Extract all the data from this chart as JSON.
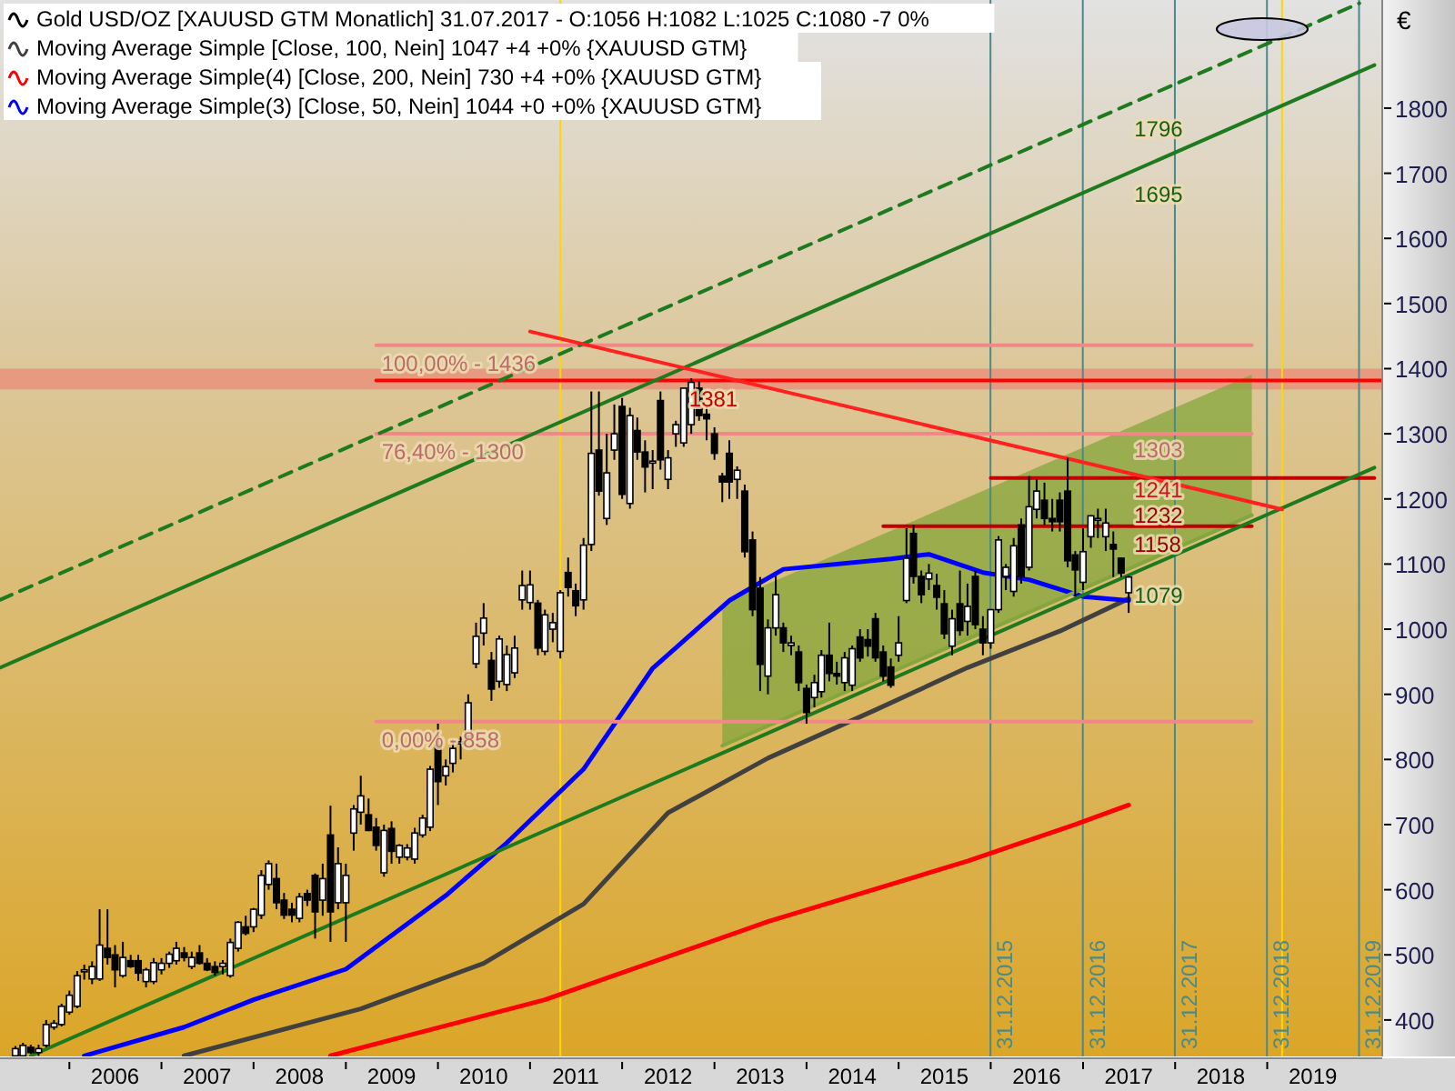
{
  "chart_data": {
    "type": "candlestick",
    "ylabel": "€",
    "legend": "top left",
    "xlim": [
      "2005-04",
      "2020-04"
    ],
    "xticks": [
      {
        "value": "2006-01",
        "label": null
      },
      {
        "value": "2006-07",
        "label": "2006"
      },
      {
        "value": "2007-01",
        "label": null
      },
      {
        "value": "2007-07",
        "label": "2007"
      },
      {
        "value": "2008-01",
        "label": null
      },
      {
        "value": "2008-07",
        "label": "2008"
      },
      {
        "value": "2009-01",
        "label": null
      },
      {
        "value": "2009-07",
        "label": "2009"
      },
      {
        "value": "2010-01",
        "label": null
      },
      {
        "value": "2010-07",
        "label": "2010"
      },
      {
        "value": "2011-01",
        "label": null
      },
      {
        "value": "2011-07",
        "label": "2011"
      },
      {
        "value": "2012-01",
        "label": null
      },
      {
        "value": "2012-07",
        "label": "2012"
      },
      {
        "value": "2013-01",
        "label": null
      },
      {
        "value": "2013-07",
        "label": "2013"
      },
      {
        "value": "2014-01",
        "label": null
      },
      {
        "value": "2014-07",
        "label": "2014"
      },
      {
        "value": "2015-01",
        "label": null
      },
      {
        "value": "2015-07",
        "label": "2015"
      },
      {
        "value": "2016-01",
        "label": null
      },
      {
        "value": "2016-07",
        "label": "2016"
      },
      {
        "value": "2017-01",
        "label": null
      },
      {
        "value": "2017-07",
        "label": "2017"
      },
      {
        "value": "2018-01",
        "label": null
      },
      {
        "value": "2018-07",
        "label": "2018"
      },
      {
        "value": "2019-01",
        "label": null
      },
      {
        "value": "2019-07",
        "label": "2019"
      }
    ],
    "ylim": [
      344,
      1966
    ],
    "yticks": [
      400,
      500,
      600,
      700,
      800,
      900,
      1000,
      1100,
      1200,
      1300,
      1400,
      1500,
      1600,
      1700,
      1800
    ],
    "series": [
      {
        "name": "Gold USD/OZ [XAUUSD GTM  Monatlich] 31.07.2017 - O:1056 H:1082 L:1025 C:1080 -7 0%",
        "color": "#000000",
        "x": [
          "2005-06",
          "2005-07",
          "2005-08",
          "2005-09",
          "2005-10",
          "2005-11",
          "2005-12",
          "2006-01",
          "2006-02",
          "2006-03",
          "2006-04",
          "2006-05",
          "2006-06",
          "2006-07",
          "2006-08",
          "2006-09",
          "2006-10",
          "2006-11",
          "2006-12",
          "2007-01",
          "2007-02",
          "2007-03",
          "2007-04",
          "2007-05",
          "2007-06",
          "2007-07",
          "2007-08",
          "2007-09",
          "2007-10",
          "2007-11",
          "2007-12",
          "2008-01",
          "2008-02",
          "2008-03",
          "2008-04",
          "2008-05",
          "2008-06",
          "2008-07",
          "2008-08",
          "2008-09",
          "2008-10",
          "2008-11",
          "2008-12",
          "2009-01",
          "2009-02",
          "2009-03",
          "2009-04",
          "2009-05",
          "2009-06",
          "2009-07",
          "2009-08",
          "2009-09",
          "2009-10",
          "2009-11",
          "2009-12",
          "2010-01",
          "2010-02",
          "2010-03",
          "2010-04",
          "2010-05",
          "2010-06",
          "2010-07",
          "2010-08",
          "2010-09",
          "2010-10",
          "2010-11",
          "2010-12",
          "2011-01",
          "2011-02",
          "2011-03",
          "2011-04",
          "2011-05",
          "2011-06",
          "2011-07",
          "2011-08",
          "2011-09",
          "2011-10",
          "2011-11",
          "2011-12",
          "2012-01",
          "2012-02",
          "2012-03",
          "2012-04",
          "2012-05",
          "2012-06",
          "2012-07",
          "2012-08",
          "2012-09",
          "2012-10",
          "2012-11",
          "2012-12",
          "2013-01",
          "2013-02",
          "2013-03",
          "2013-04",
          "2013-05",
          "2013-06",
          "2013-07",
          "2013-08",
          "2013-09",
          "2013-10",
          "2013-11",
          "2013-12",
          "2014-01",
          "2014-02",
          "2014-03",
          "2014-04",
          "2014-05",
          "2014-06",
          "2014-07",
          "2014-08",
          "2014-09",
          "2014-10",
          "2014-11",
          "2014-12",
          "2015-01",
          "2015-02",
          "2015-03",
          "2015-04",
          "2015-05",
          "2015-06",
          "2015-07",
          "2015-08",
          "2015-09",
          "2015-10",
          "2015-11",
          "2015-12",
          "2016-01",
          "2016-02",
          "2016-03",
          "2016-04",
          "2016-05",
          "2016-06",
          "2016-07",
          "2016-08",
          "2016-09",
          "2016-10",
          "2016-11",
          "2016-12",
          "2017-01",
          "2017-02",
          "2017-03",
          "2017-04",
          "2017-05",
          "2017-06",
          "2017-07"
        ],
        "ohlc": [
          [
            345,
            360,
            340,
            356
          ],
          [
            345,
            365,
            342,
            361
          ],
          [
            358,
            362,
            348,
            350
          ],
          [
            350,
            362,
            345,
            356
          ],
          [
            361,
            400,
            358,
            393
          ],
          [
            389,
            400,
            385,
            395
          ],
          [
            393,
            425,
            390,
            421
          ],
          [
            412,
            445,
            408,
            438
          ],
          [
            421,
            475,
            418,
            468
          ],
          [
            474,
            485,
            462,
            477
          ],
          [
            463,
            490,
            455,
            482
          ],
          [
            463,
            570,
            460,
            515
          ],
          [
            510,
            570,
            485,
            496
          ],
          [
            500,
            515,
            450,
            477
          ],
          [
            468,
            520,
            465,
            496
          ],
          [
            491,
            500,
            480,
            482
          ],
          [
            491,
            500,
            460,
            472
          ],
          [
            459,
            480,
            450,
            477
          ],
          [
            459,
            495,
            455,
            488
          ],
          [
            477,
            495,
            470,
            487
          ],
          [
            487,
            505,
            480,
            501
          ],
          [
            491,
            520,
            485,
            510
          ],
          [
            503,
            512,
            490,
            496
          ],
          [
            482,
            505,
            478,
            496
          ],
          [
            503,
            515,
            485,
            487
          ],
          [
            487,
            495,
            475,
            477
          ],
          [
            482,
            490,
            468,
            473
          ],
          [
            482,
            492,
            470,
            487
          ],
          [
            468,
            525,
            465,
            519
          ],
          [
            510,
            552,
            505,
            550
          ],
          [
            543,
            560,
            530,
            533
          ],
          [
            543,
            572,
            535,
            570
          ],
          [
            561,
            630,
            555,
            622
          ],
          [
            608,
            645,
            600,
            640
          ],
          [
            617,
            640,
            570,
            580
          ],
          [
            584,
            595,
            555,
            561
          ],
          [
            570,
            580,
            550,
            561
          ],
          [
            556,
            595,
            550,
            589
          ],
          [
            594,
            600,
            575,
            584
          ],
          [
            622,
            625,
            525,
            566
          ],
          [
            584,
            640,
            560,
            617
          ],
          [
            684,
            729,
            520,
            566
          ],
          [
            580,
            665,
            570,
            640
          ],
          [
            580,
            640,
            520,
            622
          ],
          [
            687,
            730,
            660,
            724
          ],
          [
            719,
            775,
            700,
            744
          ],
          [
            715,
            740,
            690,
            691
          ],
          [
            696,
            710,
            660,
            668
          ],
          [
            626,
            700,
            620,
            691
          ],
          [
            694,
            705,
            640,
            659
          ],
          [
            650,
            670,
            640,
            668
          ],
          [
            650,
            670,
            645,
            664
          ],
          [
            647,
            695,
            640,
            687
          ],
          [
            684,
            715,
            680,
            710
          ],
          [
            696,
            790,
            690,
            785
          ],
          [
            822,
            855,
            730,
            766
          ],
          [
            775,
            800,
            760,
            789
          ],
          [
            794,
            830,
            780,
            817
          ],
          [
            824,
            835,
            800,
            827
          ],
          [
            836,
            900,
            830,
            887
          ],
          [
            947,
            1010,
            940,
            989
          ],
          [
            994,
            1040,
            975,
            1017
          ],
          [
            952,
            965,
            890,
            908
          ],
          [
            920,
            990,
            910,
            985
          ],
          [
            915,
            975,
            905,
            961
          ],
          [
            933,
            990,
            925,
            971
          ],
          [
            1045,
            1090,
            1030,
            1067
          ],
          [
            1041,
            1090,
            1030,
            1068
          ],
          [
            1040,
            1045,
            960,
            971
          ],
          [
            966,
            1030,
            960,
            1022
          ],
          [
            1000,
            1025,
            980,
            1010
          ],
          [
            966,
            1060,
            955,
            1056
          ],
          [
            1087,
            1110,
            1050,
            1064
          ],
          [
            1059,
            1070,
            1020,
            1036
          ],
          [
            1045,
            1140,
            1030,
            1129
          ],
          [
            1130,
            1365,
            1120,
            1270
          ],
          [
            1275,
            1365,
            1205,
            1212
          ],
          [
            1170,
            1300,
            1160,
            1240
          ],
          [
            1275,
            1345,
            1260,
            1300
          ],
          [
            1342,
            1355,
            1200,
            1207
          ],
          [
            1193,
            1340,
            1185,
            1328
          ],
          [
            1305,
            1325,
            1260,
            1272
          ],
          [
            1272,
            1290,
            1210,
            1249
          ],
          [
            1255,
            1275,
            1215,
            1258
          ],
          [
            1351,
            1365,
            1245,
            1260
          ],
          [
            1230,
            1275,
            1215,
            1263
          ],
          [
            1300,
            1320,
            1280,
            1314
          ],
          [
            1286,
            1370,
            1280,
            1370
          ],
          [
            1314,
            1385,
            1300,
            1379
          ],
          [
            1370,
            1381,
            1320,
            1328
          ],
          [
            1330,
            1345,
            1290,
            1323
          ],
          [
            1300,
            1310,
            1260,
            1270
          ],
          [
            1235,
            1240,
            1195,
            1226
          ],
          [
            1270,
            1290,
            1200,
            1226
          ],
          [
            1230,
            1250,
            1200,
            1244
          ],
          [
            1212,
            1222,
            1110,
            1119
          ],
          [
            1137,
            1150,
            1020,
            1030
          ],
          [
            1063,
            1080,
            905,
            946
          ],
          [
            928,
            1015,
            900,
            1002
          ],
          [
            1002,
            1082,
            990,
            1053
          ],
          [
            1002,
            1010,
            965,
            979
          ],
          [
            975,
            990,
            960,
            979
          ],
          [
            965,
            975,
            905,
            918
          ],
          [
            909,
            915,
            855,
            872
          ],
          [
            895,
            930,
            880,
            918
          ],
          [
            904,
            968,
            895,
            960
          ],
          [
            960,
            1010,
            920,
            932
          ],
          [
            932,
            950,
            915,
            928
          ],
          [
            918,
            965,
            905,
            956
          ],
          [
            914,
            975,
            905,
            970
          ],
          [
            988,
            1000,
            950,
            956
          ],
          [
            984,
            1000,
            958,
            974
          ],
          [
            1016,
            1025,
            950,
            956
          ],
          [
            965,
            975,
            920,
            928
          ],
          [
            942,
            955,
            910,
            914
          ],
          [
            960,
            1020,
            950,
            979
          ],
          [
            1044,
            1155,
            1040,
            1109
          ],
          [
            1147,
            1160,
            1070,
            1081
          ],
          [
            1081,
            1090,
            1040,
            1053
          ],
          [
            1077,
            1100,
            1060,
            1086
          ],
          [
            1067,
            1085,
            1030,
            1049
          ],
          [
            1039,
            1060,
            985,
            993
          ],
          [
            974,
            1030,
            960,
            1016
          ],
          [
            1039,
            1090,
            990,
            998
          ],
          [
            1012,
            1070,
            990,
            1035
          ],
          [
            1081,
            1090,
            1000,
            1007
          ],
          [
            1000,
            1020,
            960,
            979
          ],
          [
            979,
            1030,
            970,
            1030
          ],
          [
            1030,
            1143,
            1025,
            1137
          ],
          [
            1081,
            1100,
            1060,
            1095
          ],
          [
            1058,
            1140,
            1050,
            1128
          ],
          [
            1160,
            1170,
            1070,
            1081
          ],
          [
            1095,
            1235,
            1090,
            1188
          ],
          [
            1184,
            1230,
            1170,
            1212
          ],
          [
            1198,
            1225,
            1160,
            1170
          ],
          [
            1170,
            1200,
            1150,
            1165
          ],
          [
            1198,
            1210,
            1150,
            1165
          ],
          [
            1212,
            1263,
            1095,
            1105
          ],
          [
            1114,
            1120,
            1050,
            1091
          ],
          [
            1072,
            1155,
            1060,
            1119
          ],
          [
            1142,
            1175,
            1125,
            1174
          ],
          [
            1170,
            1185,
            1140,
            1170
          ],
          [
            1142,
            1185,
            1120,
            1163
          ],
          [
            1130,
            1150,
            1080,
            1123
          ],
          [
            1109,
            1110,
            1080,
            1086
          ],
          [
            1056,
            1082,
            1025,
            1080
          ]
        ]
      },
      {
        "type": "line",
        "name": "Moving Average Simple [Close, 100, Nein] 1047 +4 +0% {XAUUSD GTM}",
        "color": "#404040",
        "x": [
          "2007-04",
          "2009-03",
          "2010-07",
          "2011-08",
          "2012-07",
          "2013-08",
          "2014-10",
          "2015-10",
          "2016-10",
          "2017-07"
        ],
        "values": [
          345,
          417,
          487,
          578,
          718,
          802,
          876,
          941,
          997,
          1047
        ]
      },
      {
        "type": "line",
        "name": "Moving Average Simple(4) [Close, 200, Nein] 730 +4 +0% {XAUUSD GTM}",
        "color": "#ff0000",
        "x": [
          "2008-11",
          "2011-03",
          "2013-08",
          "2015-10",
          "2016-12",
          "2017-07"
        ],
        "values": [
          345,
          431,
          551,
          644,
          700,
          730
        ]
      },
      {
        "type": "line",
        "name": "Moving Average Simple(3) [Close, 50, Nein] 1044 +0 +0% {XAUUSD GTM}",
        "color": "#0000ff",
        "x": [
          "2006-03",
          "2007-04",
          "2008-01",
          "2009-01",
          "2010-02",
          "2010-10",
          "2011-08",
          "2012-05",
          "2013-03",
          "2013-10",
          "2014-12",
          "2015-05",
          "2015-12",
          "2016-06",
          "2017-01",
          "2017-07"
        ],
        "values": [
          345,
          389,
          431,
          478,
          591,
          672,
          785,
          940,
          1044,
          1092,
          1108,
          1115,
          1087,
          1076,
          1050,
          1044
        ]
      },
      {
        "type": "line",
        "color": "#84a63c",
        "x": [
          "2013-02",
          "2018-11"
        ],
        "values": [
          821,
          1175
        ],
        "lower": [
          821,
          1175
        ],
        "upper": [
          1039,
          1391
        ]
      },
      {
        "type": "line",
        "color": "#f08888",
        "x": [
          "2009-05",
          "2018-11"
        ],
        "values": [
          1436,
          1436
        ]
      },
      {
        "type": "line",
        "color": "#f08888",
        "x": [
          "2009-05",
          "2018-11"
        ],
        "values": [
          1300,
          1300
        ]
      },
      {
        "type": "line",
        "color": "#f08888",
        "x": [
          "2009-05",
          "2018-11"
        ],
        "values": [
          858,
          858
        ]
      },
      {
        "type": "line",
        "color": "#c00000",
        "x": [
          "2016-01",
          "2020-03"
        ],
        "values": [
          1232,
          1232
        ]
      },
      {
        "type": "line",
        "color": "#c00000",
        "x": [
          "2014-11",
          "2018-11"
        ],
        "values": [
          1158,
          1158
        ]
      },
      {
        "type": "line",
        "color": "#ff0000",
        "x": [
          "2009-05",
          "2020-04"
        ],
        "values": [
          1382,
          1382
        ]
      },
      {
        "type": "line",
        "color": "#1e7a1e",
        "x": [
          "2005-08",
          "2020-03"
        ],
        "values": [
          345,
          1248
        ]
      },
      {
        "type": "line",
        "color": "#1e7a1e",
        "x": [
          "2005-04",
          "2020-03"
        ],
        "values": [
          941,
          1866
        ]
      },
      {
        "type": "line",
        "color": "#1e7a1e",
        "line_style": "dashed",
        "x": [
          "2005-04",
          "2020-01"
        ],
        "values": [
          1045,
          1961
        ]
      },
      {
        "type": "line",
        "color": "#ff2020",
        "x": [
          "2011-01",
          "2019-03"
        ],
        "values": [
          1457,
          1184
        ]
      }
    ],
    "bands": [
      {
        "axis": "y",
        "from": 1368,
        "to": 1400,
        "color": "#e8907a"
      }
    ],
    "ref_lines": [
      {
        "axis": "x",
        "value": "2011-05",
        "color": "#ffd700"
      },
      {
        "axis": "x",
        "value": "2019-03",
        "color": "#ffd700"
      },
      {
        "axis": "x",
        "value": "2015-12-31",
        "label": "31.12.2015",
        "color": "#4a8a8a"
      },
      {
        "axis": "x",
        "value": "2016-12-31",
        "label": "31.12.2016",
        "color": "#4a8a8a"
      },
      {
        "axis": "x",
        "value": "2017-12-31",
        "label": "31.12.2017",
        "color": "#4a8a8a"
      },
      {
        "axis": "x",
        "value": "2018-12-31",
        "label": "31.12.2018",
        "color": "#4a8a8a"
      },
      {
        "axis": "x",
        "value": "2019-12-31",
        "label": "31.12.2019",
        "color": "#4a8a8a"
      }
    ],
    "annotations": [
      {
        "text": "100,00% - 1436",
        "x": "2009-05",
        "y": 1436
      },
      {
        "text": "76,40% - 1300",
        "x": "2009-05",
        "y": 1300
      },
      {
        "text": "0,00% - 858",
        "x": "2009-05",
        "y": 858
      },
      {
        "text": "1381",
        "x": "2012-09",
        "y": 1381
      },
      {
        "text": "1796",
        "x": "2017-07",
        "y": 1796
      },
      {
        "text": "1695",
        "x": "2017-07",
        "y": 1695
      },
      {
        "text": "1303",
        "x": "2017-07",
        "y": 1303
      },
      {
        "text": "1241",
        "x": "2017-07",
        "y": 1241
      },
      {
        "text": "1232",
        "x": "2017-07",
        "y": 1232
      },
      {
        "text": "1158",
        "x": "2017-07",
        "y": 1158
      },
      {
        "text": "1079",
        "x": "2017-07",
        "y": 1079
      }
    ]
  }
}
